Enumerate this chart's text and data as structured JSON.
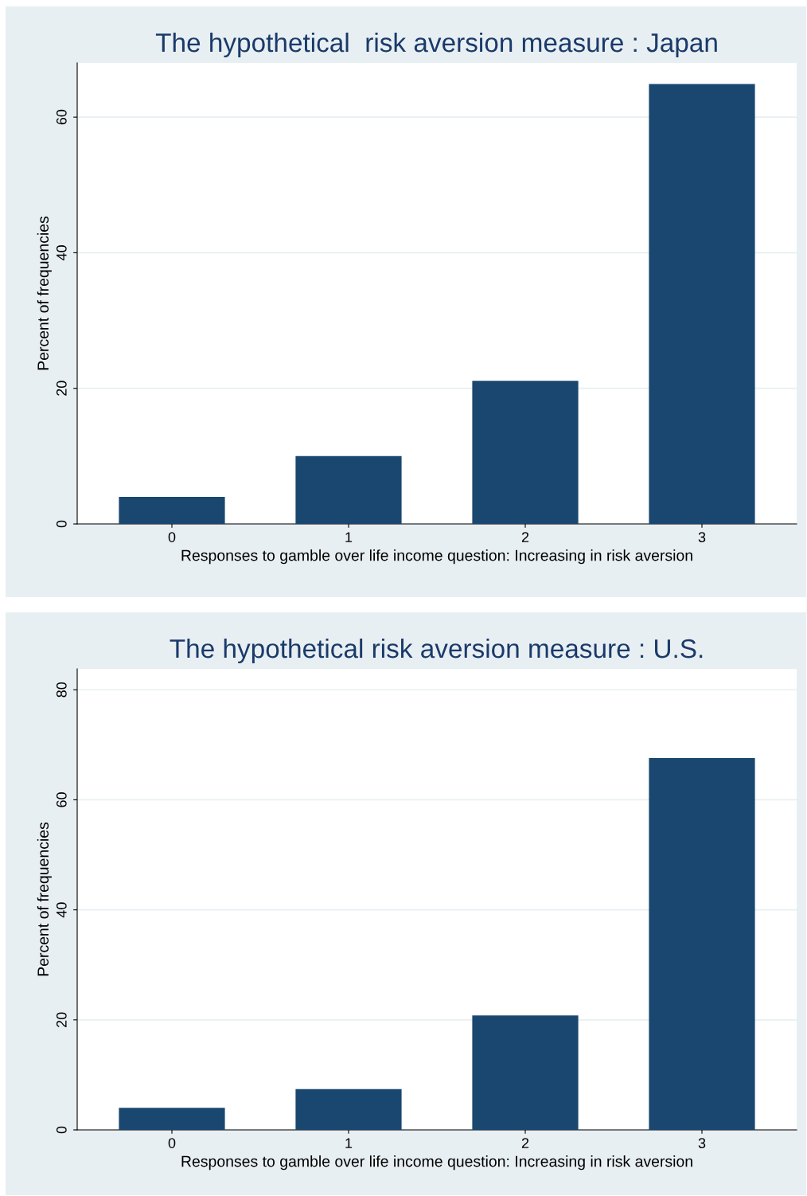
{
  "chart_data": [
    {
      "type": "bar",
      "title": "The hypothetical  risk aversion measure : Japan",
      "xlabel": "Responses to gamble over life income question: Increasing in risk aversion",
      "ylabel": "Percent of frequencies",
      "categories": [
        "0",
        "1",
        "2",
        "3"
      ],
      "values": [
        4.0,
        10.0,
        21.1,
        64.9
      ],
      "color": "#1a476f",
      "ylim": [
        0,
        68
      ],
      "yticks": [
        0,
        20,
        40,
        60
      ],
      "grid": "y",
      "legend": false
    },
    {
      "type": "bar",
      "title": "The hypothetical risk aversion measure : U.S.",
      "xlabel": "Responses to gamble over life income question: Increasing in risk aversion",
      "ylabel": "Percent of frequencies",
      "categories": [
        "0",
        "1",
        "2",
        "3"
      ],
      "values": [
        4.0,
        7.4,
        20.8,
        67.6
      ],
      "color": "#1a476f",
      "ylim": [
        0,
        83.8
      ],
      "yticks": [
        0,
        20,
        40,
        60,
        80
      ],
      "grid": "y",
      "legend": false
    }
  ]
}
